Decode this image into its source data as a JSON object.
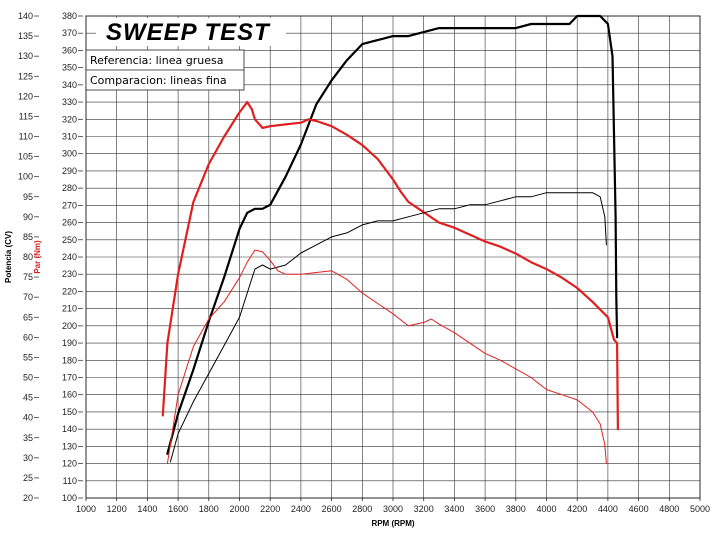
{
  "chart_data": {
    "type": "line",
    "title": "SWEEP TEST",
    "legend": [
      "Referencia: linea gruesa",
      "Comparacion: lineas fina"
    ],
    "xlabel": "RPM (RPM)",
    "ylabel_left": "Potencia (CV)",
    "ylabel_right": "Par (Nm)",
    "xlim": [
      1000,
      5000
    ],
    "ylim_left": [
      20,
      140
    ],
    "ylim_right": [
      100,
      380
    ],
    "x_ticks": [
      "1000",
      "1200",
      "1400",
      "1600",
      "1800",
      "2000",
      "2200",
      "2400",
      "2600",
      "2800",
      "3000",
      "3200",
      "3400",
      "3600",
      "3800",
      "4000",
      "4200",
      "4400",
      "4600",
      "4800",
      "5000"
    ],
    "y_left_ticks": [
      "20",
      "25",
      "30",
      "35",
      "40",
      "45",
      "50",
      "55",
      "60",
      "65",
      "70",
      "75",
      "80",
      "85",
      "90",
      "95",
      "100",
      "105",
      "110",
      "115",
      "120",
      "125",
      "130",
      "135",
      "140"
    ],
    "y_right_ticks": [
      "100",
      "110",
      "120",
      "130",
      "140",
      "150",
      "160",
      "170",
      "180",
      "190",
      "200",
      "210",
      "220",
      "230",
      "240",
      "250",
      "260",
      "270",
      "280",
      "290",
      "300",
      "310",
      "320",
      "330",
      "340",
      "350",
      "360",
      "370",
      "380"
    ],
    "grid": true,
    "legend_placement": "top-left",
    "colors": {
      "power": "#000000",
      "torque": "#e02020",
      "grid": "#333333"
    },
    "series": [
      {
        "name": "Referencia: linea gruesa",
        "quantity": "power",
        "axis": "left",
        "weight": "thick",
        "color": "#000000",
        "x": [
          1530,
          1600,
          1700,
          1800,
          1900,
          2000,
          2050,
          2100,
          2150,
          2200,
          2300,
          2400,
          2500,
          2600,
          2700,
          2800,
          2900,
          3000,
          3100,
          3200,
          3300,
          3400,
          3500,
          3600,
          3700,
          3800,
          3900,
          4000,
          4100,
          4150,
          4200,
          4300,
          4350,
          4400,
          4430,
          4450,
          4455,
          4460
        ],
        "y": [
          31,
          41,
          52,
          64,
          75,
          87,
          91,
          92,
          92,
          93,
          100,
          108,
          118,
          124,
          129,
          133,
          134,
          135,
          135,
          136,
          137,
          137,
          137,
          137,
          137,
          137,
          138,
          138,
          138,
          138,
          140,
          140,
          140,
          138,
          130,
          90,
          70,
          60
        ]
      },
      {
        "name": "Referencia: linea gruesa",
        "quantity": "torque",
        "axis": "right",
        "weight": "thick",
        "color": "#e02020",
        "x": [
          1500,
          1530,
          1600,
          1700,
          1800,
          1900,
          2000,
          2050,
          2080,
          2100,
          2150,
          2200,
          2300,
          2400,
          2450,
          2500,
          2600,
          2700,
          2800,
          2900,
          3000,
          3050,
          3100,
          3200,
          3300,
          3400,
          3500,
          3600,
          3700,
          3800,
          3900,
          4000,
          4100,
          4200,
          4300,
          4400,
          4440,
          4460,
          4465
        ],
        "y": [
          148,
          190,
          230,
          272,
          294,
          310,
          324,
          330,
          326,
          320,
          315,
          316,
          317,
          318,
          320,
          319,
          316,
          311,
          305,
          297,
          285,
          278,
          272,
          266,
          260,
          257,
          253,
          249,
          246,
          242,
          237,
          233,
          228,
          222,
          214,
          205,
          192,
          190,
          140
        ]
      },
      {
        "name": "Comparacion: lineas fina",
        "quantity": "power",
        "axis": "left",
        "weight": "thin",
        "color": "#000000",
        "x": [
          1550,
          1600,
          1700,
          1800,
          1900,
          2000,
          2050,
          2100,
          2150,
          2200,
          2300,
          2400,
          2500,
          2600,
          2700,
          2800,
          2900,
          3000,
          3100,
          3200,
          3300,
          3400,
          3500,
          3600,
          3700,
          3800,
          3900,
          4000,
          4100,
          4200,
          4300,
          4350,
          4380,
          4390
        ],
        "y": [
          29,
          36,
          44,
          51,
          58,
          65,
          71,
          77,
          78,
          77,
          78,
          81,
          83,
          85,
          86,
          88,
          89,
          89,
          90,
          91,
          92,
          92,
          93,
          93,
          94,
          95,
          95,
          96,
          96,
          96,
          96,
          95,
          90,
          83
        ]
      },
      {
        "name": "Comparacion: lineas fina",
        "quantity": "torque",
        "axis": "right",
        "weight": "thin",
        "color": "#e02020",
        "x": [
          1530,
          1600,
          1700,
          1800,
          1900,
          2000,
          2050,
          2100,
          2150,
          2200,
          2250,
          2300,
          2400,
          2500,
          2600,
          2700,
          2800,
          2900,
          3000,
          3100,
          3200,
          3250,
          3300,
          3400,
          3500,
          3600,
          3700,
          3800,
          3900,
          4000,
          4100,
          4200,
          4300,
          4350,
          4380,
          4390
        ],
        "y": [
          120,
          160,
          188,
          204,
          214,
          228,
          237,
          244,
          243,
          238,
          232,
          230,
          230,
          231,
          232,
          227,
          219,
          213,
          207,
          200,
          202,
          204,
          201,
          196,
          190,
          184,
          180,
          175,
          170,
          163,
          160,
          157,
          150,
          143,
          131,
          120
        ]
      }
    ]
  }
}
